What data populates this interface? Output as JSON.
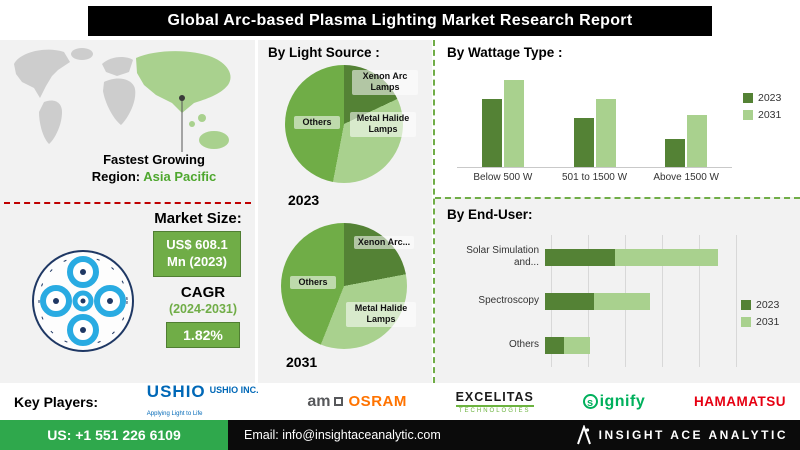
{
  "title": "Global  Arc-based Plasma Lighting Market Research Report",
  "left": {
    "fastest_growing_label": "Fastest Growing",
    "region_label": "Region:",
    "region_value": "Asia Pacific",
    "market_size_label": "Market Size:",
    "market_size_value": "US$ 608.1 Mn (2023)",
    "cagr_label": "CAGR",
    "cagr_period": "(2024-2031)",
    "cagr_value": "1.82%"
  },
  "players": {
    "label": "Key Players:",
    "ushio_name": "USHIO",
    "ushio_tagline": "Applying Light to Life",
    "ushio_suffix": "USHIO INC.",
    "ams_name": "am",
    "osram_name": "OSRAM",
    "excelitas_name": "EXCELITAS",
    "excelitas_sub": "TECHNOLOGIES",
    "signify_icon": "s",
    "signify_name": "ignify",
    "hamamatsu_name": "HAMAMATSU"
  },
  "footer": {
    "phone": "US: +1 551 226 6109",
    "email": "Email: info@insightaceanalytic.com",
    "brand": "INSIGHT ACE ANALYTIC"
  },
  "colors": {
    "accent_dark_green": "#548235",
    "accent_mid_green": "#70AD47",
    "accent_light_green": "#A9D18E",
    "region_green": "#4EA72E",
    "dashed_red": "#C00000",
    "footer_green": "#2FA84C",
    "ushio_blue": "#0068B7",
    "osram_orange": "#FF7300",
    "excelitas_green": "#6CB33F",
    "signify_green": "#00B05C",
    "hamamatsu_red": "#E60012",
    "titlebar_black": "#000000"
  },
  "chart_data": [
    {
      "id": "light-source-2023",
      "type": "pie",
      "title": "By  Light Source :",
      "year_label": "2023",
      "labels": [
        "Xenon Arc Lamps",
        "Metal Halide Lamps",
        "Others"
      ],
      "values": [
        18,
        35,
        47
      ],
      "colors": [
        "#548235",
        "#A9D18E",
        "#70AD47"
      ],
      "legend_position": "on-slice"
    },
    {
      "id": "light-source-2031",
      "type": "pie",
      "year_label": "2031",
      "labels": [
        "Xenon Arc...",
        "Metal Halide Lamps",
        "Others"
      ],
      "values": [
        22,
        34,
        44
      ],
      "colors": [
        "#548235",
        "#A9D18E",
        "#70AD47"
      ],
      "legend_position": "on-slice"
    },
    {
      "id": "wattage-type",
      "type": "bar",
      "title": "By  Wattage Type :",
      "categories": [
        "Below 500 W",
        "501 to 1500 W",
        "Above 1500 W"
      ],
      "series": [
        {
          "name": "2023",
          "color": "#548235",
          "values": [
            55,
            40,
            23
          ]
        },
        {
          "name": "2031",
          "color": "#A9D18E",
          "values": [
            70,
            55,
            42
          ]
        }
      ],
      "ylim": [
        0,
        80
      ],
      "grid": false,
      "legend_position": "right"
    },
    {
      "id": "end-user",
      "type": "bar-horizontal",
      "title": "By End-User:",
      "categories": [
        "Solar Simulation and...",
        "Spectroscopy",
        "Others"
      ],
      "series": [
        {
          "name": "2023",
          "color": "#548235",
          "values": [
            55,
            38,
            15
          ]
        },
        {
          "name": "2031",
          "color": "#A9D18E",
          "values": [
            135,
            82,
            35
          ]
        }
      ],
      "xlim": [
        0,
        150
      ],
      "grid": true,
      "legend_position": "right"
    }
  ]
}
